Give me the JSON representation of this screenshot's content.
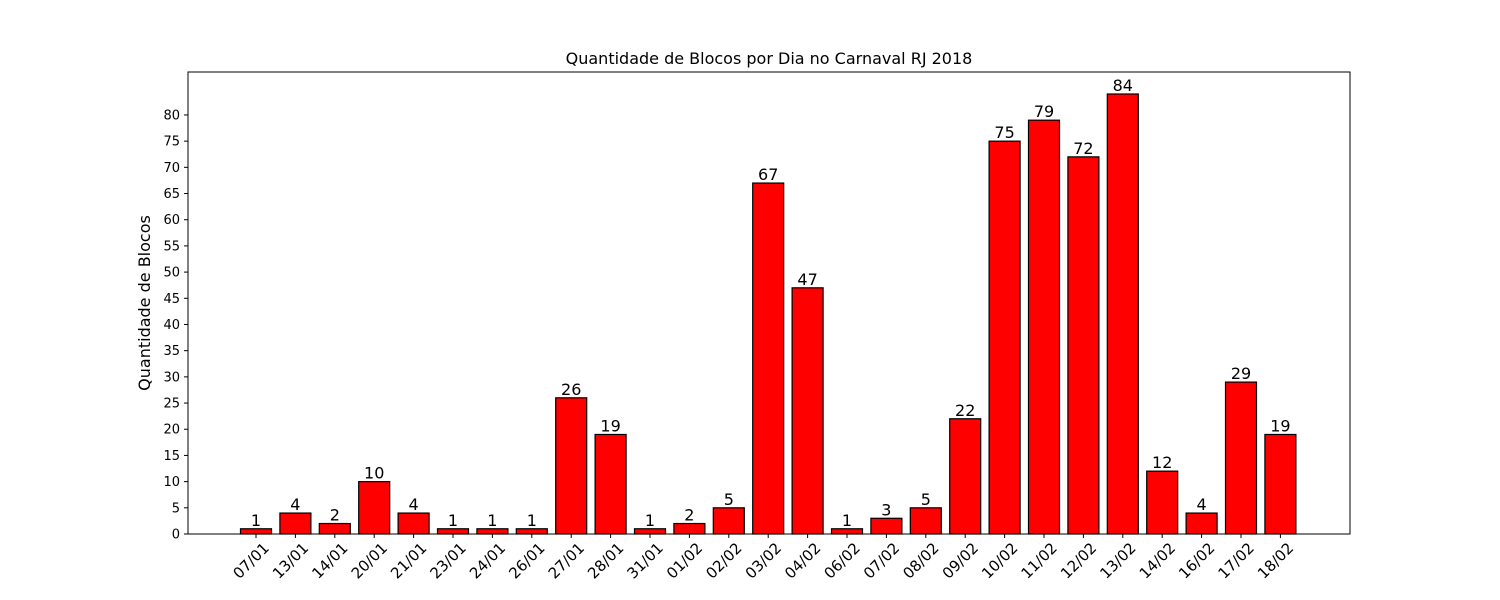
{
  "chart_data": {
    "type": "bar",
    "title": "Quantidade de Blocos por Dia no Carnaval RJ 2018",
    "xlabel": "",
    "ylabel": "Quantidade de Blocos",
    "categories": [
      "07/01",
      "13/01",
      "14/01",
      "20/01",
      "21/01",
      "23/01",
      "24/01",
      "26/01",
      "27/01",
      "28/01",
      "31/01",
      "01/02",
      "02/02",
      "03/02",
      "04/02",
      "06/02",
      "07/02",
      "08/02",
      "09/02",
      "10/02",
      "11/02",
      "12/02",
      "13/02",
      "14/02",
      "16/02",
      "17/02",
      "18/02"
    ],
    "values": [
      1,
      4,
      2,
      10,
      4,
      1,
      1,
      1,
      26,
      19,
      1,
      2,
      5,
      67,
      47,
      1,
      3,
      5,
      22,
      75,
      79,
      72,
      84,
      12,
      4,
      29,
      19
    ],
    "ylim": [
      0,
      84
    ],
    "yticks": [
      0,
      5,
      10,
      15,
      20,
      25,
      30,
      35,
      40,
      45,
      50,
      55,
      60,
      65,
      70,
      75,
      80
    ],
    "grid": false,
    "bar_color": "#ff0000",
    "edge_color": "#000000"
  }
}
